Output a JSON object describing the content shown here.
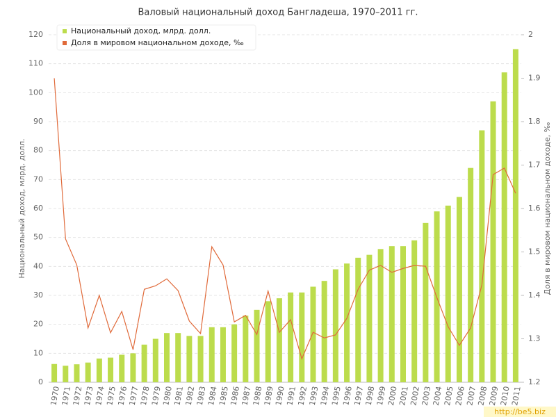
{
  "chart_data": {
    "type": "bar_line",
    "title": "Валовый национальный доход Бангладеша, 1970–2011 гг.",
    "y_label": "Национальный доход, млрд. долл.",
    "y2_label": "Доля в мировом национальном доходе, ‰",
    "watermark": "http://be5.biz",
    "categories": [
      "1970",
      "1971",
      "1972",
      "1973",
      "1974",
      "1975",
      "1976",
      "1977",
      "1978",
      "1979",
      "1980",
      "1981",
      "1982",
      "1983",
      "1984",
      "1985",
      "1986",
      "1987",
      "1988",
      "1989",
      "1990",
      "1991",
      "1992",
      "1993",
      "1994",
      "1995",
      "1996",
      "1997",
      "1998",
      "1999",
      "2000",
      "2001",
      "2002",
      "2003",
      "2004",
      "2005",
      "2006",
      "2007",
      "2008",
      "2009",
      "2010",
      "2011"
    ],
    "series": [
      {
        "name": "Национальный доход, млрд. долл.",
        "color": "#bcdc4c",
        "kind": "bar",
        "values": [
          6.3,
          5.7,
          6.2,
          6.8,
          8.2,
          8.5,
          9.5,
          10,
          13,
          15,
          17,
          17,
          16,
          16,
          19,
          19,
          20,
          23,
          25,
          28,
          29,
          31,
          31,
          33,
          35,
          39,
          41,
          43,
          44,
          46,
          47,
          47,
          49,
          55,
          59,
          61,
          64,
          74,
          87,
          97,
          107,
          115
        ]
      },
      {
        "name": "Доля в мировом национальном доходе, ‰",
        "color": "#e06a3a",
        "kind": "line",
        "axis": "y2",
        "values": [
          1.9,
          1.53,
          1.47,
          1.325,
          1.4,
          1.314,
          1.363,
          1.275,
          1.414,
          1.422,
          1.438,
          1.411,
          1.341,
          1.312,
          1.512,
          1.47,
          1.339,
          1.354,
          1.31,
          1.41,
          1.315,
          1.344,
          1.254,
          1.315,
          1.302,
          1.309,
          1.347,
          1.414,
          1.458,
          1.469,
          1.453,
          1.462,
          1.469,
          1.467,
          1.395,
          1.328,
          1.285,
          1.325,
          1.424,
          1.678,
          1.693,
          1.635
        ]
      }
    ],
    "ylim": [
      0,
      120
    ],
    "yticks": [
      0,
      10,
      20,
      30,
      40,
      50,
      60,
      70,
      80,
      90,
      100,
      110,
      120
    ],
    "y2lim": [
      1.2,
      2
    ],
    "y2ticks": [
      1.2,
      1.3,
      1.4,
      1.5,
      1.6,
      1.7,
      1.8,
      1.9,
      2
    ],
    "grid": true,
    "legend": "upper left"
  }
}
